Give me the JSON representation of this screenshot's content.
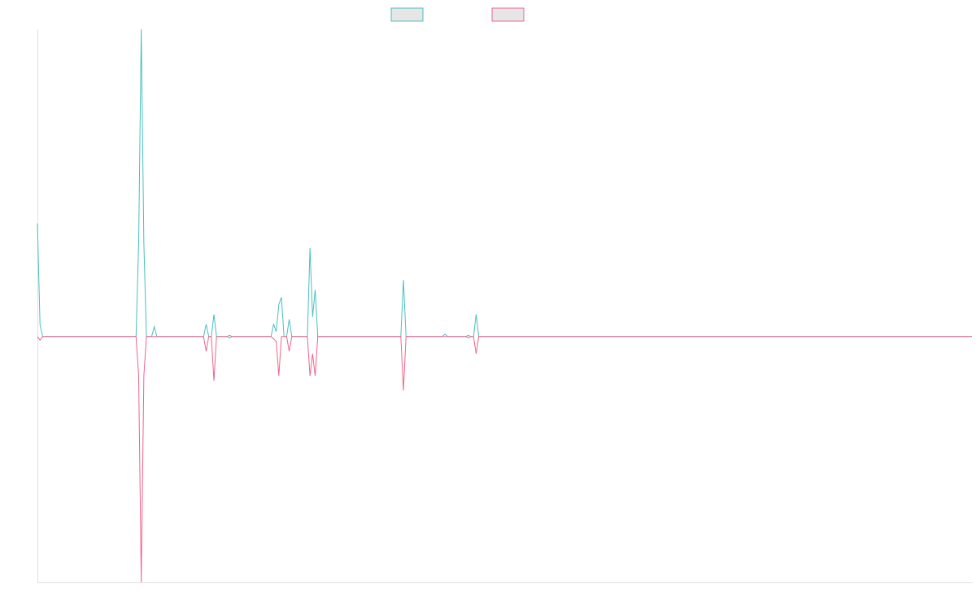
{
  "colors": {
    "series_up": "#4bbfbf",
    "series_down": "#f0648c",
    "legend_fill": "#e6e6e6",
    "axis": "#e0e0e0"
  },
  "chart_data": {
    "type": "line",
    "title": "",
    "xlabel": "",
    "ylabel": "",
    "legend_position": "top-center",
    "grid": false,
    "xlim": [
      0,
      360
    ],
    "ylim": [
      -100,
      125
    ],
    "series": [
      {
        "color": "#4bbfbf",
        "values": [
          [
            0,
            46
          ],
          [
            1,
            5
          ],
          [
            2,
            0
          ],
          [
            38,
            0
          ],
          [
            39,
            38
          ],
          [
            40,
            125
          ],
          [
            41,
            38
          ],
          [
            42,
            0
          ],
          [
            44,
            0
          ],
          [
            45,
            4
          ],
          [
            46,
            0
          ],
          [
            64,
            0
          ],
          [
            65,
            5
          ],
          [
            66,
            0
          ],
          [
            67,
            0
          ],
          [
            68,
            9
          ],
          [
            69,
            0
          ],
          [
            73,
            0
          ],
          [
            74,
            0.5
          ],
          [
            75,
            0
          ],
          [
            90,
            0
          ],
          [
            91,
            5
          ],
          [
            92,
            2
          ],
          [
            93,
            13
          ],
          [
            94,
            16
          ],
          [
            95,
            0
          ],
          [
            96,
            0
          ],
          [
            97,
            7
          ],
          [
            98,
            0
          ],
          [
            104,
            0
          ],
          [
            105,
            36
          ],
          [
            106,
            8
          ],
          [
            107,
            19
          ],
          [
            108,
            0
          ],
          [
            140,
            0
          ],
          [
            141,
            23
          ],
          [
            142,
            0
          ],
          [
            156,
            0
          ],
          [
            157,
            1
          ],
          [
            158,
            0
          ],
          [
            165,
            0
          ],
          [
            166,
            0.5
          ],
          [
            167,
            0
          ],
          [
            168,
            0
          ],
          [
            169,
            9
          ],
          [
            170,
            0
          ],
          [
            360,
            0
          ]
        ]
      },
      {
        "color": "#f0648c",
        "values": [
          [
            0,
            0
          ],
          [
            1,
            -1.5
          ],
          [
            2,
            0
          ],
          [
            38,
            0
          ],
          [
            39,
            -16
          ],
          [
            40,
            -100
          ],
          [
            41,
            -16
          ],
          [
            42,
            0
          ],
          [
            44,
            0
          ],
          [
            45,
            0
          ],
          [
            46,
            0
          ],
          [
            64,
            0
          ],
          [
            65,
            -6
          ],
          [
            66,
            0
          ],
          [
            67,
            0
          ],
          [
            68,
            -18
          ],
          [
            69,
            0
          ],
          [
            73,
            0
          ],
          [
            74,
            -0.5
          ],
          [
            75,
            0
          ],
          [
            90,
            0
          ],
          [
            91,
            -1
          ],
          [
            92,
            -2
          ],
          [
            93,
            -16
          ],
          [
            94,
            0
          ],
          [
            95,
            0
          ],
          [
            96,
            0
          ],
          [
            97,
            -6
          ],
          [
            98,
            0
          ],
          [
            104,
            0
          ],
          [
            105,
            -16
          ],
          [
            106,
            -7
          ],
          [
            107,
            -16
          ],
          [
            108,
            0
          ],
          [
            140,
            0
          ],
          [
            141,
            -22
          ],
          [
            142,
            0
          ],
          [
            156,
            0
          ],
          [
            157,
            0
          ],
          [
            158,
            0
          ],
          [
            165,
            0
          ],
          [
            166,
            -0.5
          ],
          [
            167,
            0
          ],
          [
            168,
            0
          ],
          [
            169,
            -7
          ],
          [
            170,
            0
          ],
          [
            360,
            0
          ]
        ]
      }
    ]
  }
}
